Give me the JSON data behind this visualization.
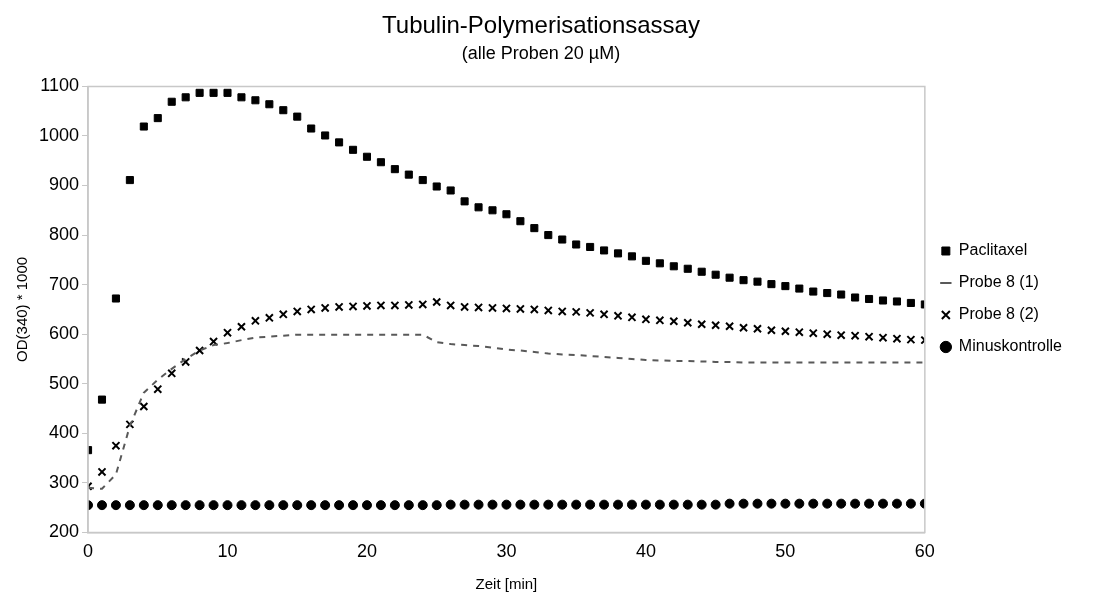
{
  "chart_data": {
    "type": "scatter",
    "title": "Tubulin-Polymerisationsassay",
    "subtitle": "(alle Proben 20 µM)",
    "xlabel": "Zeit [min]",
    "ylabel": "OD(340) * 1000",
    "x": [
      0,
      1,
      2,
      3,
      4,
      5,
      6,
      7,
      8,
      9,
      10,
      11,
      12,
      13,
      14,
      15,
      16,
      17,
      18,
      19,
      20,
      21,
      22,
      23,
      24,
      25,
      26,
      27,
      28,
      29,
      30,
      31,
      32,
      33,
      34,
      35,
      36,
      37,
      38,
      39,
      40,
      41,
      42,
      43,
      44,
      45,
      46,
      47,
      48,
      49,
      50,
      51,
      52,
      53,
      54,
      55,
      56,
      57,
      58,
      59,
      60
    ],
    "xlim": [
      0,
      60
    ],
    "xticks": [
      0,
      10,
      20,
      30,
      40,
      50,
      60
    ],
    "ylim": [
      200,
      1100
    ],
    "yticks": [
      200,
      300,
      400,
      500,
      600,
      700,
      800,
      900,
      1000,
      1100
    ],
    "grid": false,
    "legend": "right",
    "series": [
      {
        "name": "Paclitaxel",
        "color": "#000000",
        "marker": "square",
        "values": [
          366,
          468,
          672,
          911,
          1019,
          1036,
          1069,
          1078,
          1087,
          1087,
          1087,
          1078,
          1072,
          1064,
          1052,
          1039,
          1015,
          1001,
          987,
          972,
          958,
          947,
          933,
          922,
          911,
          898,
          890,
          868,
          856,
          850,
          842,
          828,
          814,
          800,
          791,
          781,
          776,
          769,
          763,
          757,
          748,
          743,
          737,
          732,
          726,
          720,
          714,
          709,
          706,
          701,
          697,
          692,
          686,
          683,
          680,
          674,
          671,
          668,
          666,
          663,
          660
        ]
      },
      {
        "name": "Probe 8 (1)",
        "type": "line",
        "color": "#595959",
        "marker": "none",
        "line_style": "dashed",
        "values": [
          290,
          288,
          317,
          415,
          482,
          508,
          530,
          550,
          567,
          578,
          582,
          588,
          593,
          595,
          597,
          599,
          599,
          599,
          599,
          599,
          599,
          599,
          599,
          599,
          599,
          584,
          580,
          578,
          576,
          573,
          569,
          567,
          564,
          561,
          559,
          558,
          556,
          554,
          552,
          550,
          548,
          547,
          546,
          546,
          545,
          544,
          544,
          543,
          543,
          543,
          543,
          543,
          543,
          543,
          543,
          543,
          543,
          543,
          543,
          543,
          543
        ]
      },
      {
        "name": "Probe 8 (2)",
        "color": "#000000",
        "marker": "cross",
        "values": [
          293,
          322,
          375,
          418,
          454,
          489,
          521,
          544,
          567,
          585,
          603,
          615,
          627,
          633,
          640,
          646,
          650,
          653,
          655,
          656,
          657,
          658,
          658,
          659,
          660,
          665,
          658,
          655,
          654,
          653,
          652,
          651,
          650,
          648,
          646,
          645,
          643,
          640,
          637,
          634,
          630,
          628,
          626,
          623,
          620,
          618,
          616,
          613,
          611,
          608,
          606,
          604,
          602,
          600,
          598,
          597,
          595,
          593,
          591,
          589,
          588
        ]
      },
      {
        "name": "Minuskontrolle",
        "color": "#000000",
        "marker": "circle",
        "values": [
          255,
          255,
          255,
          255,
          255,
          255,
          255,
          255,
          255,
          255,
          255,
          255,
          255,
          255,
          255,
          255,
          255,
          255,
          255,
          255,
          255,
          255,
          255,
          255,
          255,
          255,
          256,
          256,
          256,
          256,
          256,
          256,
          256,
          256,
          256,
          256,
          256,
          256,
          256,
          256,
          256,
          256,
          256,
          256,
          256,
          256,
          258,
          258,
          258,
          258,
          258,
          258,
          258,
          258,
          258,
          258,
          258,
          258,
          258,
          258,
          258
        ]
      }
    ]
  }
}
